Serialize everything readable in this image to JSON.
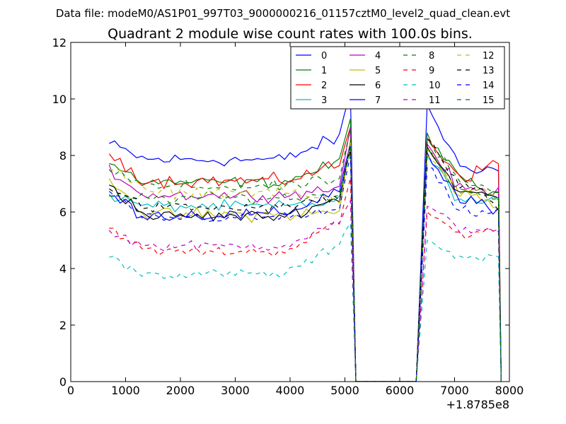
{
  "chart_data": {
    "type": "line",
    "suptitle": "Data file: modeM0/AS1P01_997T03_9000000216_01157cztM0_level2_quad_clean.evt",
    "title": "Quadrant 2 module wise count rates with 100.0s bins.",
    "xlabel": "",
    "ylabel": "",
    "x_offset_label": "+1.8785e8",
    "xlim": [
      0,
      8000
    ],
    "ylim": [
      0,
      12
    ],
    "xticks": [
      0,
      1000,
      2000,
      3000,
      4000,
      5000,
      6000,
      7000,
      8000
    ],
    "yticks": [
      0,
      2,
      4,
      6,
      8,
      10,
      12
    ],
    "xtick_labels": [
      "0",
      "1000",
      "2000",
      "3000",
      "4000",
      "5000",
      "6000",
      "7000",
      "8000"
    ],
    "ytick_labels": [
      "0",
      "2",
      "4",
      "6",
      "8",
      "10",
      "12"
    ],
    "x_segments": {
      "seg1": {
        "start": 700,
        "end": 5100,
        "step": 100
      },
      "gap": [
        5200,
        6300
      ],
      "seg2": {
        "start": 6500,
        "end": 7800,
        "step": 100
      }
    },
    "legend_position": "top-right",
    "legend_columns": 4,
    "series": [
      {
        "name": "0",
        "color": "#0000ff",
        "style": "solid",
        "base1": 7.85,
        "start1": 8.4,
        "end1": 8.8,
        "peak": 10.2,
        "base2": 7.6,
        "start2": 9.8,
        "end2": 7.5,
        "noise": 0.35
      },
      {
        "name": "1",
        "color": "#008000",
        "style": "solid",
        "base1": 7.05,
        "start1": 7.7,
        "end1": 7.9,
        "peak": 9.3,
        "base2": 7.1,
        "start2": 8.8,
        "end2": 6.5,
        "noise": 0.3
      },
      {
        "name": "2",
        "color": "#ff0000",
        "style": "solid",
        "base1": 7.1,
        "start1": 8.1,
        "end1": 7.8,
        "peak": 9.0,
        "base2": 7.3,
        "start2": 8.6,
        "end2": 7.8,
        "noise": 0.35
      },
      {
        "name": "3",
        "color": "#00bfbf",
        "style": "solid",
        "base1": 6.2,
        "start1": 6.6,
        "end1": 6.4,
        "peak": 8.5,
        "base2": 6.4,
        "start2": 8.0,
        "end2": 6.3,
        "noise": 0.3
      },
      {
        "name": "4",
        "color": "#bf00bf",
        "style": "solid",
        "base1": 6.6,
        "start1": 7.5,
        "end1": 6.9,
        "peak": 9.0,
        "base2": 6.8,
        "start2": 8.4,
        "end2": 6.7,
        "noise": 0.3
      },
      {
        "name": "5",
        "color": "#bfbf00",
        "style": "solid",
        "base1": 5.9,
        "start1": 7.3,
        "end1": 6.0,
        "peak": 8.6,
        "base2": 6.6,
        "start2": 8.2,
        "end2": 6.2,
        "noise": 0.35
      },
      {
        "name": "6",
        "color": "#000000",
        "style": "solid",
        "base1": 5.85,
        "start1": 7.0,
        "end1": 6.6,
        "peak": 8.3,
        "base2": 6.7,
        "start2": 8.3,
        "end2": 6.5,
        "noise": 0.3
      },
      {
        "name": "7",
        "color": "#0000ff",
        "style": "solid",
        "base1": 5.9,
        "start1": 6.6,
        "end1": 7.0,
        "peak": 8.4,
        "base2": 6.4,
        "start2": 8.1,
        "end2": 6.0,
        "noise": 0.35
      },
      {
        "name": "8",
        "color": "#008000",
        "style": "dashed",
        "base1": 6.5,
        "start1": 6.5,
        "end1": 6.6,
        "peak": 8.3,
        "base2": 6.8,
        "start2": 8.2,
        "end2": 6.4,
        "noise": 0.3
      },
      {
        "name": "9",
        "color": "#ff0000",
        "style": "dashed",
        "base1": 4.6,
        "start1": 5.5,
        "end1": 5.8,
        "peak": 7.2,
        "base2": 5.2,
        "start2": 6.0,
        "end2": 5.4,
        "noise": 0.25
      },
      {
        "name": "10",
        "color": "#00bfbf",
        "style": "dashed",
        "base1": 3.8,
        "start1": 4.4,
        "end1": 5.0,
        "peak": 5.6,
        "base2": 4.4,
        "start2": 5.0,
        "end2": 4.4,
        "noise": 0.25
      },
      {
        "name": "11",
        "color": "#bf00bf",
        "style": "dashed",
        "base1": 4.8,
        "start1": 5.3,
        "end1": 5.8,
        "peak": 6.4,
        "base2": 5.4,
        "start2": 6.2,
        "end2": 5.4,
        "noise": 0.25
      },
      {
        "name": "12",
        "color": "#bfbf00",
        "style": "dashed",
        "base1": 6.7,
        "start1": 7.6,
        "end1": 6.3,
        "peak": 8.4,
        "base2": 6.8,
        "start2": 8.0,
        "end2": 6.6,
        "noise": 0.3
      },
      {
        "name": "13",
        "color": "#000000",
        "style": "dashed",
        "base1": 6.15,
        "start1": 6.9,
        "end1": 6.6,
        "peak": 8.2,
        "base2": 6.9,
        "start2": 8.6,
        "end2": 6.2,
        "noise": 0.3
      },
      {
        "name": "14",
        "color": "#0000ff",
        "style": "dashed",
        "base1": 5.8,
        "start1": 6.6,
        "end1": 6.1,
        "peak": 8.0,
        "base2": 6.0,
        "start2": 7.6,
        "end2": 6.0,
        "noise": 0.3
      },
      {
        "name": "15",
        "color": "#008000",
        "style": "dashed",
        "base1": 6.9,
        "start1": 7.5,
        "end1": 7.2,
        "peak": 8.9,
        "base2": 7.0,
        "start2": 8.6,
        "end2": 6.6,
        "noise": 0.3
      }
    ]
  }
}
